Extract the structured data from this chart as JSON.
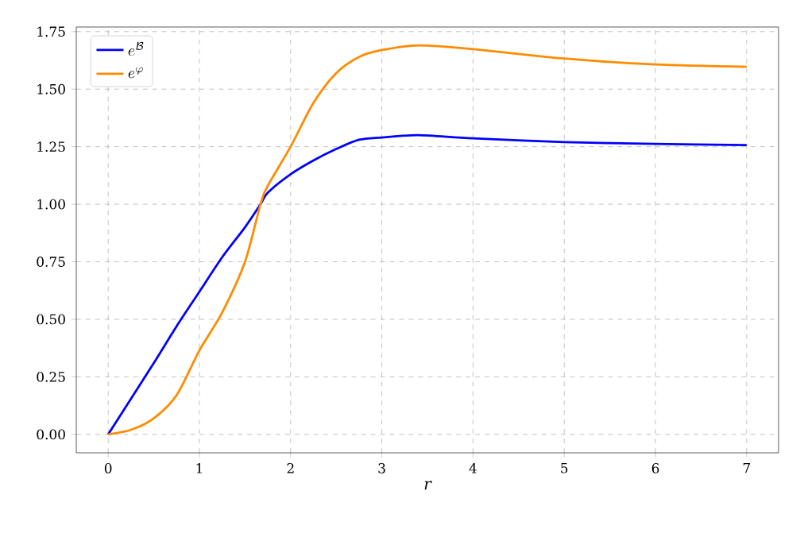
{
  "chart_data": {
    "type": "line",
    "xlabel": "r",
    "x": [
      0,
      0.25,
      0.5,
      0.75,
      1,
      1.25,
      1.5,
      1.67,
      1.75,
      2,
      2.25,
      2.5,
      2.75,
      3,
      3.4,
      4,
      5,
      6,
      7
    ],
    "series": [
      {
        "name": "e^{\\mathcal{B}}",
        "color": "#0000ff",
        "values": [
          0,
          0.155,
          0.31,
          0.47,
          0.62,
          0.77,
          0.9,
          1.0,
          1.05,
          1.13,
          1.19,
          1.24,
          1.28,
          1.29,
          1.3,
          1.286,
          1.27,
          1.262,
          1.257
        ]
      },
      {
        "name": "e^{\\varphi}",
        "color": "#ff8c00",
        "values": [
          0,
          0.02,
          0.07,
          0.17,
          0.365,
          0.53,
          0.75,
          1.0,
          1.08,
          1.25,
          1.44,
          1.57,
          1.64,
          1.67,
          1.69,
          1.674,
          1.633,
          1.607,
          1.597
        ]
      }
    ],
    "xlim": [
      -0.35,
      7.35
    ],
    "ylim": [
      -0.08,
      1.77
    ],
    "xticks": [
      0,
      1,
      2,
      3,
      4,
      5,
      6,
      7
    ],
    "yticks": [
      {
        "value": 0,
        "label": "0.00"
      },
      0.25,
      {
        "value": 0.5,
        "label": "0.50"
      },
      0.75,
      {
        "value": 1,
        "label": "1.00"
      },
      1.25,
      {
        "value": 1.5,
        "label": "1.50"
      },
      1.75
    ],
    "grid": true,
    "legend": "top left",
    "line_style": "solid",
    "marker": "none"
  }
}
